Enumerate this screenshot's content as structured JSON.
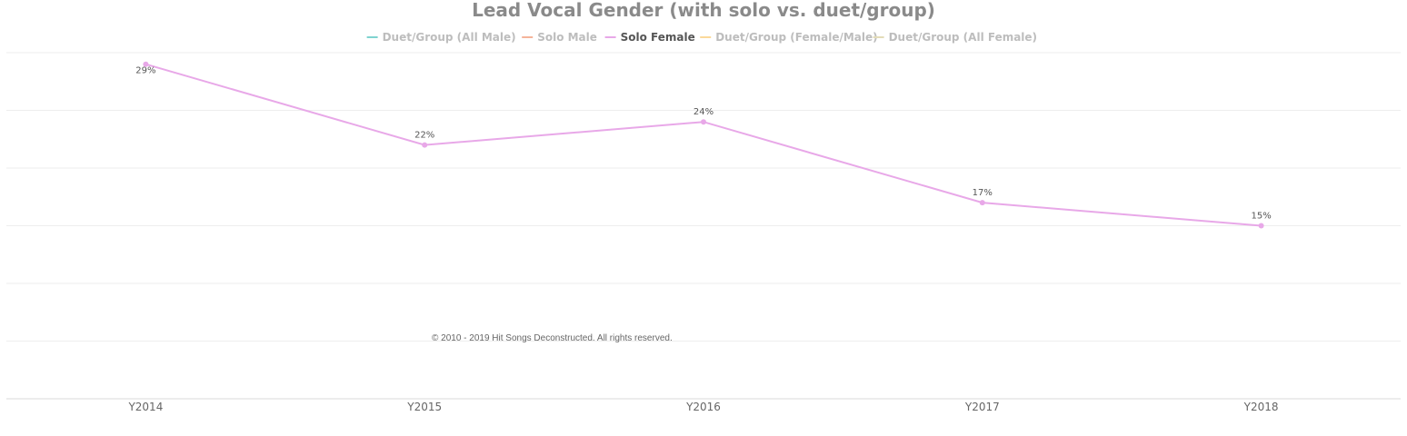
{
  "chart_data": {
    "type": "line",
    "title": "Lead Vocal Gender (with solo vs. duet/group)",
    "categories": [
      "Y2014",
      "Y2015",
      "Y2016",
      "Y2017",
      "Y2018"
    ],
    "legend_placement": "top-center",
    "grid": true,
    "ylim": [
      0,
      30
    ],
    "legend": [
      {
        "name": "Duet/Group (All Male)",
        "color": "#7fd3d0",
        "active": false
      },
      {
        "name": "Solo Male",
        "color": "#f5b49a",
        "active": false
      },
      {
        "name": "Solo Female",
        "color": "#e8a8e8",
        "active": true
      },
      {
        "name": "Duet/Group (Female/Male)",
        "color": "#fbd99a",
        "active": false
      },
      {
        "name": "Duet/Group (All Female)",
        "color": "#e3dcb8",
        "active": false
      }
    ],
    "series": [
      {
        "name": "Solo Female",
        "color": "#e8a8e8",
        "values": [
          29,
          22,
          24,
          17,
          15
        ],
        "labels": [
          "29%",
          "22%",
          "24%",
          "17%",
          "15%"
        ]
      }
    ]
  },
  "credit": "© 2010 - 2019 Hit Songs Deconstructed. All rights reserved."
}
